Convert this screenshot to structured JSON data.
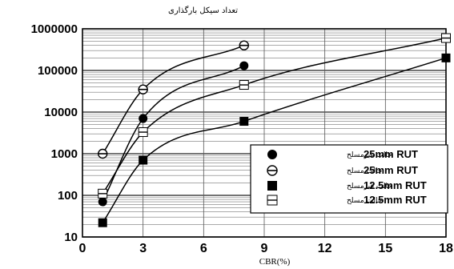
{
  "chart_data": {
    "type": "scatter",
    "ylabel": "تعداد سیکل بارگذاری",
    "xlabel": "CBR(%)",
    "x_ticks": [
      0,
      3,
      6,
      9,
      12,
      15,
      18
    ],
    "y_ticks": [
      10,
      100,
      1000,
      10000,
      100000,
      1000000
    ],
    "y_tick_labels": [
      "10",
      "100",
      "1000",
      "10000",
      "100000",
      "1000000"
    ],
    "xlim": [
      0,
      18
    ],
    "ylim": [
      10,
      1000000
    ],
    "y_scale": "log",
    "grid": true,
    "legend_position": "bottom-right",
    "series": [
      {
        "name": "25mm RUT",
        "fa_label": "حالت غیرمسلح",
        "marker": "filled-circle",
        "x": [
          1,
          3,
          8
        ],
        "y": [
          70,
          7000,
          130000
        ]
      },
      {
        "name": "25mm RUT",
        "fa_label": "حالت مسلح",
        "marker": "circle-with-bar",
        "x": [
          1,
          3,
          8
        ],
        "y": [
          1000,
          35000,
          400000
        ]
      },
      {
        "name": "12.5mm RUT",
        "fa_label": "حالت غیرمسلح",
        "marker": "filled-square",
        "x": [
          1,
          3,
          8,
          18
        ],
        "y": [
          22,
          700,
          6000,
          200000
        ]
      },
      {
        "name": "12.5mm RUT",
        "fa_label": "حالت مسلح",
        "marker": "square-with-bar",
        "x": [
          1,
          3,
          8,
          18
        ],
        "y": [
          110,
          3300,
          45000,
          600000
        ]
      }
    ]
  }
}
